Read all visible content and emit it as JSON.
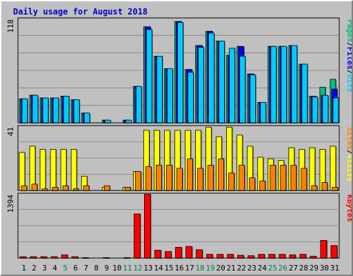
{
  "title": "Daily usage for August 2018",
  "colors": {
    "frame_bg": "#c0c0c0",
    "title": "#0000cc",
    "hits": "#00ccff",
    "files": "#0000ff",
    "pages": "#00c080",
    "visits": "#ffff00",
    "sites": "#ff8000",
    "kbytes": "#ff0000",
    "weekend_day": "#008040",
    "weekday": "#000000"
  },
  "chart_data": [
    {
      "type": "bar",
      "name": "hits-files-pages-panel",
      "ylabel_max": "118",
      "ylim": [
        0,
        118
      ],
      "right_label_parts": [
        "Pages",
        "/",
        "Files",
        "/",
        "Hits"
      ],
      "categories": [
        "1",
        "2",
        "3",
        "4",
        "5",
        "6",
        "7",
        "8",
        "9",
        "10",
        "11",
        "12",
        "13",
        "14",
        "15",
        "16",
        "17",
        "18",
        "19",
        "20",
        "21",
        "22",
        "23",
        "24",
        "25",
        "26",
        "27",
        "28",
        "29",
        "30",
        "31"
      ],
      "weekend": [
        false,
        false,
        false,
        false,
        true,
        false,
        false,
        false,
        false,
        false,
        true,
        true,
        false,
        false,
        false,
        false,
        false,
        true,
        true,
        false,
        false,
        false,
        false,
        false,
        true,
        true,
        false,
        false,
        false,
        false,
        false
      ],
      "series": [
        {
          "name": "Pages",
          "values": [
            27,
            31,
            28,
            28,
            30,
            26,
            11,
            0,
            3,
            0,
            3,
            41,
            108,
            75,
            61,
            114,
            60,
            87,
            103,
            92,
            76,
            86,
            55,
            23,
            86,
            86,
            87,
            66,
            30,
            40,
            49
          ]
        },
        {
          "name": "Files",
          "values": [
            27,
            31,
            28,
            28,
            30,
            26,
            11,
            0,
            3,
            0,
            3,
            41,
            108,
            75,
            61,
            114,
            60,
            87,
            103,
            92,
            76,
            86,
            55,
            23,
            86,
            86,
            87,
            66,
            30,
            31,
            38
          ]
        },
        {
          "name": "Hits",
          "values": [
            27,
            31,
            28,
            28,
            30,
            26,
            11,
            0,
            3,
            0,
            3,
            41,
            105,
            75,
            61,
            113,
            57,
            85,
            101,
            92,
            84,
            75,
            54,
            23,
            86,
            86,
            87,
            66,
            29,
            31,
            28
          ]
        }
      ]
    },
    {
      "type": "bar",
      "name": "visits-sites-panel",
      "ylabel_max": "41",
      "ylim": [
        0,
        41
      ],
      "right_label_parts": [
        "Sites",
        "/",
        "Visits"
      ],
      "series": [
        {
          "name": "Visits",
          "values": [
            24,
            28,
            26,
            26,
            26,
            26,
            9,
            0,
            2,
            0,
            2,
            12,
            38,
            38,
            38,
            38,
            38,
            38,
            40,
            34,
            40,
            35,
            28,
            21,
            20,
            19,
            27,
            26,
            27,
            26,
            28
          ]
        },
        {
          "name": "Sites",
          "values": [
            3,
            4,
            1,
            2,
            3,
            1,
            3,
            0,
            3,
            0,
            2,
            12,
            15,
            16,
            16,
            14,
            20,
            14,
            16,
            20,
            11,
            16,
            8,
            6,
            16,
            16,
            16,
            14,
            3,
            5,
            2
          ]
        }
      ]
    },
    {
      "type": "bar",
      "name": "kbytes-panel",
      "ylabel_max": "1394",
      "ylim": [
        0,
        1394
      ],
      "right_label_parts": [
        "KBytes"
      ],
      "series": [
        {
          "name": "KBytes",
          "values": [
            30,
            30,
            30,
            30,
            70,
            30,
            10,
            0,
            10,
            0,
            10,
            950,
            1370,
            170,
            140,
            230,
            250,
            180,
            80,
            80,
            80,
            60,
            50,
            80,
            80,
            80,
            70,
            80,
            40,
            380,
            270
          ]
        }
      ]
    }
  ]
}
